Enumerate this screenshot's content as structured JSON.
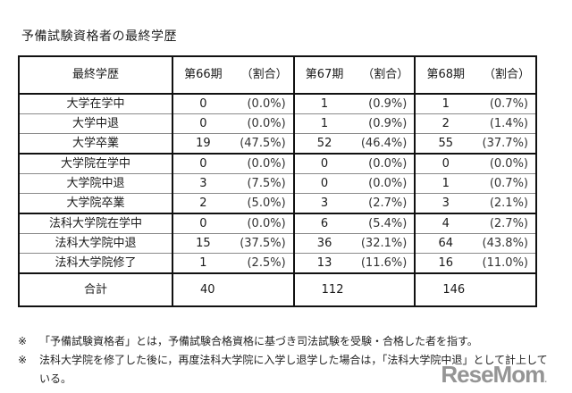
{
  "title": "予備試験資格者の最終学歴",
  "table": {
    "headers": {
      "label": "最終学歴",
      "columns": [
        {
          "period": "第66期",
          "ratio": "（割合）"
        },
        {
          "period": "第67期",
          "ratio": "（割合）"
        },
        {
          "period": "第68期",
          "ratio": "（割合）"
        }
      ]
    },
    "rows": [
      {
        "label": "大学在学中",
        "values": [
          [
            "0",
            "(0.0%)"
          ],
          [
            "1",
            "(0.9%)"
          ],
          [
            "1",
            "(0.7%)"
          ]
        ]
      },
      {
        "label": "大学中退",
        "values": [
          [
            "0",
            "(0.0%)"
          ],
          [
            "1",
            "(0.9%)"
          ],
          [
            "2",
            "(1.4%)"
          ]
        ]
      },
      {
        "label": "大学卒業",
        "values": [
          [
            "19",
            "(47.5%)"
          ],
          [
            "52",
            "(46.4%)"
          ],
          [
            "55",
            "(37.7%)"
          ]
        ]
      },
      {
        "label": "大学院在学中",
        "values": [
          [
            "0",
            "(0.0%)"
          ],
          [
            "0",
            "(0.0%)"
          ],
          [
            "0",
            "(0.0%)"
          ]
        ]
      },
      {
        "label": "大学院中退",
        "values": [
          [
            "3",
            "(7.5%)"
          ],
          [
            "0",
            "(0.0%)"
          ],
          [
            "1",
            "(0.7%)"
          ]
        ]
      },
      {
        "label": "大学院卒業",
        "values": [
          [
            "2",
            "(5.0%)"
          ],
          [
            "3",
            "(2.7%)"
          ],
          [
            "3",
            "(2.1%)"
          ]
        ]
      },
      {
        "label": "法科大学院在学中",
        "values": [
          [
            "0",
            "(0.0%)"
          ],
          [
            "6",
            "(5.4%)"
          ],
          [
            "4",
            "(2.7%)"
          ]
        ]
      },
      {
        "label": "法科大学院中退",
        "values": [
          [
            "15",
            "(37.5%)"
          ],
          [
            "36",
            "(32.1%)"
          ],
          [
            "64",
            "(43.8%)"
          ]
        ]
      },
      {
        "label": "法科大学院修了",
        "values": [
          [
            "1",
            "(2.5%)"
          ],
          [
            "13",
            "(11.6%)"
          ],
          [
            "16",
            "(11.0%)"
          ]
        ]
      }
    ],
    "total": {
      "label": "合計",
      "values": [
        "40",
        "112",
        "146"
      ]
    }
  },
  "notes": [
    {
      "mark": "※",
      "text": "「予備試験資格者」とは，予備試験合格資格に基づき司法試験を受験・合格した者を指す。"
    },
    {
      "mark": "※",
      "text": "法科大学院を修了した後に，再度法科大学院に入学し退学した場合は，「法科大学院中退」として計上して",
      "cont": "いる。"
    }
  ],
  "logo": {
    "text": "ReseMom",
    "suffix": "."
  }
}
